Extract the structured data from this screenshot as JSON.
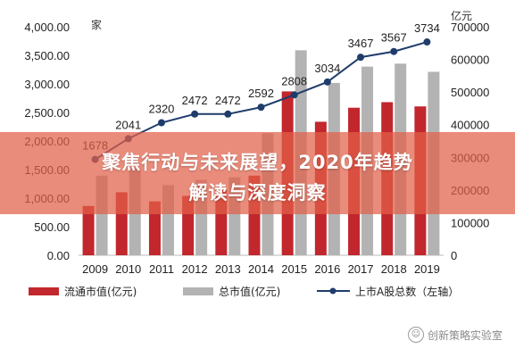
{
  "banner": {
    "line1": "聚焦行动与未来展望，2020年趋势",
    "line2": "解读与深度洞察"
  },
  "watermark": "创新策略实验室",
  "chart_data": {
    "type": "bar+line",
    "categories": [
      "2009",
      "2010",
      "2011",
      "2012",
      "2013",
      "2014",
      "2015",
      "2016",
      "2017",
      "2018",
      "2019"
    ],
    "left_axis": {
      "unit": "家",
      "ylim": [
        0,
        4000
      ],
      "ticks": [
        "0.00",
        "500.00",
        "1,000.00",
        "1,500.00",
        "2,000.00",
        "2,500.00",
        "3,000.00",
        "3,500.00",
        "4,000.00"
      ]
    },
    "right_axis": {
      "unit": "亿元",
      "ylim": [
        0,
        700000
      ],
      "ticks": [
        "0",
        "100000",
        "200000",
        "300000",
        "400000",
        "500000",
        "600000",
        "700000"
      ]
    },
    "series": [
      {
        "name": "流通市值(亿元)",
        "type": "bar",
        "axis": "right",
        "color": "#c1272d",
        "values": [
          151000,
          193000,
          165000,
          182000,
          200000,
          244000,
          502000,
          409000,
          452000,
          469000,
          456000
        ]
      },
      {
        "name": "总市值(亿元)",
        "type": "bar",
        "axis": "right",
        "color": "#b3b3b3",
        "values": [
          244000,
          265000,
          215000,
          231000,
          239000,
          374000,
          628000,
          528000,
          578000,
          587000,
          562000
        ]
      },
      {
        "name": "上市A股总数（左轴）",
        "type": "line",
        "axis": "left",
        "color": "#1f3d6b",
        "values": [
          1678,
          2041,
          2320,
          2472,
          2472,
          2592,
          2808,
          3034,
          3467,
          3567,
          3734
        ],
        "labels": [
          "1678",
          "2041",
          "2320",
          "2472",
          "2472",
          "2592",
          "2808",
          "3034",
          "3467",
          "3567",
          "3734"
        ]
      }
    ],
    "legend_position": "bottom"
  }
}
